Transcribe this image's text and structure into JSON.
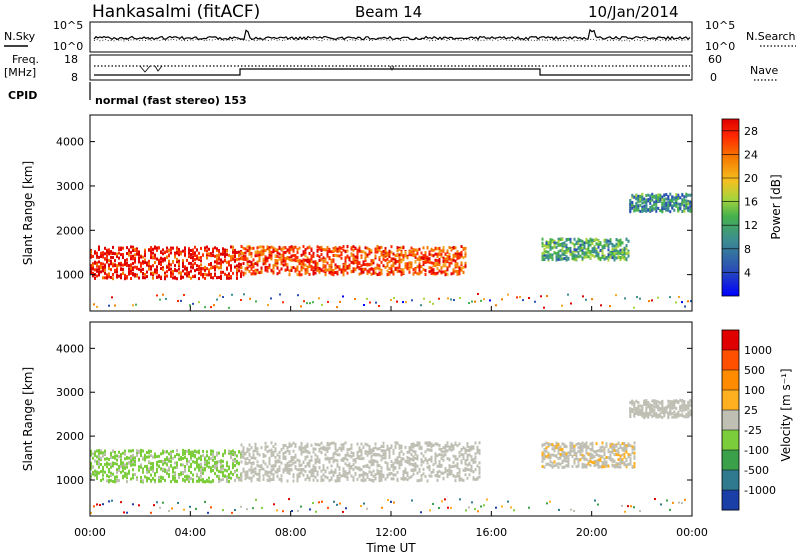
{
  "header": {
    "station": "Hankasalmi (fitACF)",
    "beam": "Beam 14",
    "date": "10/Jan/2014"
  },
  "noise_panel": {
    "left_label": "N.Sky",
    "right_label": "N.Search",
    "tick_top": "10^5",
    "tick_bottom": "10^0"
  },
  "freq_panel": {
    "left_label_line1": "Freq.",
    "left_label_line2": "[MHz]",
    "right_label": "Nave",
    "left_ticks": [
      "18",
      "8"
    ],
    "right_ticks": [
      "60",
      "0"
    ]
  },
  "cpid": {
    "label": "CPID",
    "text": "normal (fast stereo) 153"
  },
  "x_axis": {
    "title": "Time UT",
    "ticks": [
      "00:00",
      "04:00",
      "08:00",
      "12:00",
      "16:00",
      "20:00",
      "00:00"
    ]
  },
  "colors": {
    "power_scale": [
      "#0000ff",
      "#2b4fb5",
      "#3d8f8f",
      "#46b14c",
      "#a7d43c",
      "#f5a623",
      "#f57c00",
      "#ff2a00",
      "#e00000"
    ],
    "velocity_scale": [
      "#1a3fa6",
      "#2f7a8f",
      "#3aa14a",
      "#7ccd3c",
      "#bfbfb4",
      "#ffb020",
      "#ff8c00",
      "#ff5000",
      "#e00000"
    ]
  },
  "chart_data": [
    {
      "type": "heatmap",
      "title": "Power",
      "xlabel": "Time UT",
      "ylabel": "Slant Range [km]",
      "xlim": [
        0,
        24
      ],
      "ylim": [
        180,
        4600
      ],
      "y_ticks": [
        "1000",
        "2000",
        "3000",
        "4000"
      ],
      "colorbar": {
        "label": "Power [dB]",
        "ticks": [
          "4",
          "8",
          "12",
          "16",
          "20",
          "24",
          "28"
        ],
        "range": [
          0,
          30
        ]
      },
      "echo_regions": [
        {
          "t_start": 0.0,
          "t_end": 6.0,
          "range_center": 1300,
          "range_width": 450,
          "level": 27
        },
        {
          "t_start": 6.0,
          "t_end": 15.0,
          "range_center": 1350,
          "range_width": 400,
          "level": 24
        },
        {
          "t_start": 18.0,
          "t_end": 21.5,
          "range_center": 1600,
          "range_width": 300,
          "level": 11
        },
        {
          "t_start": 21.5,
          "t_end": 24.0,
          "range_center": 2650,
          "range_width": 250,
          "level": 9
        }
      ]
    },
    {
      "type": "heatmap",
      "title": "Velocity",
      "xlabel": "Time UT",
      "ylabel": "Slant Range [km]",
      "xlim": [
        0,
        24
      ],
      "ylim": [
        180,
        4600
      ],
      "y_ticks": [
        "1000",
        "2000",
        "3000",
        "4000"
      ],
      "colorbar": {
        "label": "Velocity [m s⁻¹]",
        "ticks": [
          "1000",
          "500",
          "100",
          "25",
          "-25",
          "-100",
          "-500",
          "-1000"
        ],
        "range": [
          -1200,
          1200
        ]
      },
      "echo_regions": [
        {
          "t_start": 0.0,
          "t_end": 6.0,
          "range_center": 1350,
          "range_width": 450,
          "level": -200
        },
        {
          "t_start": 6.0,
          "t_end": 15.5,
          "range_center": 1450,
          "range_width": 550,
          "level": 0
        },
        {
          "t_start": 18.0,
          "t_end": 21.7,
          "range_center": 1600,
          "range_width": 350,
          "level": 60
        },
        {
          "t_start": 21.5,
          "t_end": 24.0,
          "range_center": 2650,
          "range_width": 250,
          "level": 0
        }
      ]
    }
  ]
}
